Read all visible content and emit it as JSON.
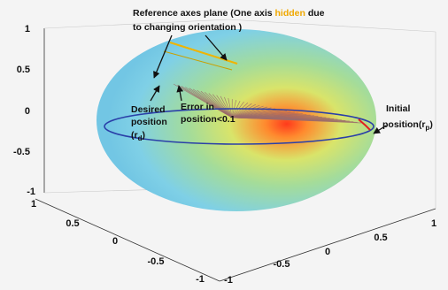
{
  "annotations": {
    "reference_plane_prefix": "Reference axes plane (One axis ",
    "reference_plane_highlight": "hidden",
    "reference_plane_suffix": " due",
    "reference_plane_line2": "to changing orientation  )",
    "desired_position_line1": "Desired",
    "desired_position_line2": "position",
    "desired_position_line3_prefix": "(r",
    "desired_position_line3_sub": "d",
    "desired_position_line3_suffix": ")",
    "error_line1": "Error in",
    "error_line2": "position<0.1",
    "initial_line1": "Initial",
    "initial_line2_prefix": "position(r",
    "initial_line2_sub": "p",
    "initial_line2_suffix": ")"
  },
  "z_axis_ticks": [
    "1",
    "0.5",
    "0",
    "-0.5",
    "-1"
  ],
  "left_axis_ticks": [
    "1",
    "0.5",
    "0",
    "-0.5",
    "-1"
  ],
  "right_axis_ticks": [
    "1",
    "0.5",
    "0",
    "-0.5",
    "-1"
  ],
  "colors": {
    "background": "#f4f4f4",
    "sphere_edge": "#7fd0e6",
    "sphere_mid": "#b8e07a",
    "hotspot": "#ff3b1e",
    "equator": "#2a3fa8",
    "reference_line": "#f0b400",
    "highlight_text": "#f0a800",
    "arrows": "#111111",
    "fan_lines": "#b08080"
  }
}
